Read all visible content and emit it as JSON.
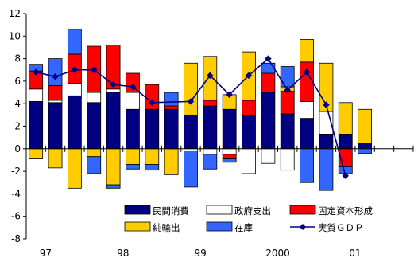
{
  "chart_data": {
    "type": "bar",
    "stacked": true,
    "x": [
      1,
      2,
      3,
      4,
      5,
      6,
      7,
      8,
      9,
      10,
      11,
      12,
      13,
      14,
      15,
      16,
      17,
      18,
      19,
      20
    ],
    "x_tick_labels": [
      {
        "label": "97",
        "at": 1.5
      },
      {
        "label": "98",
        "at": 5.5
      },
      {
        "label": "99",
        "at": 9.5
      },
      {
        "label": "2000",
        "at": 13.5
      },
      {
        "label": "01",
        "at": 17.5
      }
    ],
    "ylim": [
      -8,
      12
    ],
    "yticks": [
      -8,
      -6,
      -4,
      -2,
      0,
      2,
      4,
      6,
      8,
      10,
      12
    ],
    "grid": false,
    "legend": "bottom-center",
    "series": [
      {
        "name": "民間消費",
        "color": "#000080",
        "values": [
          4.2,
          4.1,
          4.7,
          4.1,
          5.0,
          3.5,
          3.5,
          3.5,
          3.0,
          3.8,
          3.5,
          3.0,
          5.0,
          3.1,
          2.7,
          1.3,
          1.3,
          0.5,
          0,
          0
        ]
      },
      {
        "name": "政府支出",
        "color": "#ffffff",
        "values": [
          1.1,
          0.2,
          1.1,
          0.9,
          0.3,
          1.5,
          0,
          0,
          -0.2,
          -0.5,
          -0.5,
          -2.2,
          -1.3,
          -1.9,
          1.5,
          2.0,
          0,
          0,
          0,
          0
        ]
      },
      {
        "name": "固定資本形成",
        "color": "#ff0000",
        "values": [
          1.6,
          1.3,
          2.6,
          4.1,
          3.9,
          1.7,
          2.2,
          0.3,
          0,
          0.5,
          -0.4,
          1.3,
          1.7,
          2.0,
          3.5,
          0,
          -1.6,
          0,
          0,
          0
        ]
      },
      {
        "name": "純輸出",
        "color": "#ffcc00",
        "values": [
          -0.9,
          -1.7,
          -3.5,
          -0.7,
          -3.2,
          -1.4,
          -1.4,
          -2.3,
          4.6,
          3.9,
          1.3,
          4.3,
          0,
          0.4,
          2.0,
          4.3,
          2.8,
          3.0,
          0,
          0
        ]
      },
      {
        "name": "在庫",
        "color": "#3366ff",
        "values": [
          0.6,
          2.4,
          2.2,
          -1.5,
          -0.3,
          -0.4,
          -0.5,
          1.2,
          -3.2,
          -1.3,
          -0.3,
          0,
          0.9,
          1.8,
          -3.0,
          -3.7,
          -0.6,
          -0.4,
          0,
          0
        ]
      },
      {
        "name": "実質GDP",
        "color": "#000080",
        "type": "line",
        "values": [
          6.8,
          6.4,
          7.0,
          7.0,
          5.7,
          5.5,
          4.1,
          null,
          4.2,
          6.5,
          4.8,
          6.5,
          8.0,
          5.2,
          6.8,
          3.9,
          -2.4,
          null,
          null,
          null
        ]
      }
    ],
    "legend_labels": [
      "民間消費",
      "政府支出",
      "固定資本形成",
      "純輸出",
      "在庫",
      "実質ＧＤＰ"
    ]
  }
}
